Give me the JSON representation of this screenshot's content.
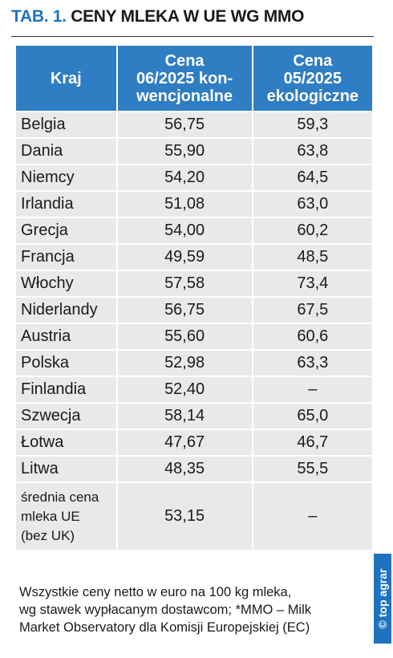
{
  "title": {
    "prefix": "TAB. 1.",
    "text": "CENY MLEKA W UE WG MMO"
  },
  "table": {
    "header": [
      [
        "Kraj"
      ],
      [
        "Cena",
        "06/2025 kon-",
        "wencjonalne"
      ],
      [
        "Cena",
        "05/2025",
        "ekologiczne"
      ]
    ],
    "rows": [
      [
        "Belgia",
        "56,75",
        "59,3"
      ],
      [
        "Dania",
        "55,90",
        "63,8"
      ],
      [
        "Niemcy",
        "54,20",
        "64,5"
      ],
      [
        "Irlandia",
        "51,08",
        "63,0"
      ],
      [
        "Grecja",
        "54,00",
        "60,2"
      ],
      [
        "Francja",
        "49,59",
        "48,5"
      ],
      [
        "Włochy",
        "57,58",
        "73,4"
      ],
      [
        "Niderlandy",
        "56,75",
        "67,5"
      ],
      [
        "Austria",
        "55,60",
        "60,6"
      ],
      [
        "Polska",
        "52,98",
        "63,3"
      ],
      [
        "Finlandia",
        "52,40",
        "–"
      ],
      [
        "Szwecja",
        "58,14",
        "65,0"
      ],
      [
        "Łotwa",
        "47,67",
        "46,7"
      ],
      [
        "Litwa",
        "48,35",
        "55,5"
      ]
    ],
    "summary": [
      [
        "średnia cena",
        "mleka UE",
        "(bez UK)"
      ],
      "53,15",
      "–"
    ]
  },
  "footnote": [
    "Wszystkie ceny netto w euro na 100 kg mleka,",
    "wg stawek wypłacanym dostawcom; *MMO – Milk",
    "Market Observatory dla Komisji Europejskiej (EC)"
  ],
  "watermark": "© top agrar"
}
